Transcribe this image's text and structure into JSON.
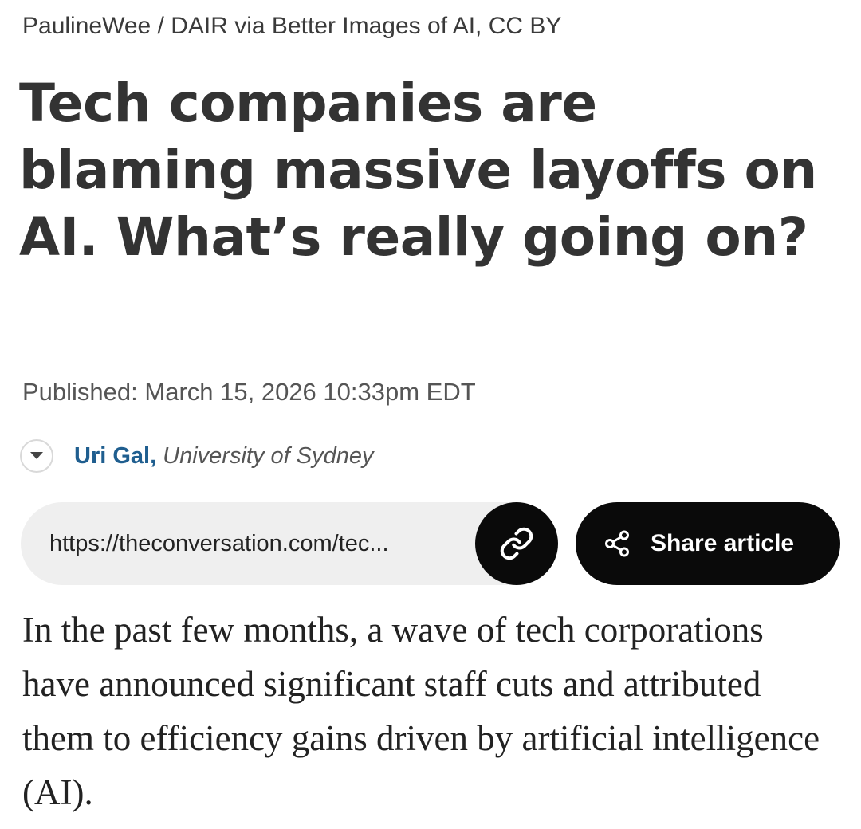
{
  "image_credit": "PaulineWee / DAIR via Better Images of AI, CC BY",
  "article": {
    "title": "Tech companies are blaming massive layoffs on AI. What’s really going on?",
    "published": "Published: March 15, 2026 10:33pm EDT",
    "author": {
      "name": "Uri Gal,",
      "affiliation": "University of Sydney"
    },
    "body_first_paragraph": "In the past few months, a wave of tech corporations have announced significant staff cuts and attributed them to efficiency gains driven by artificial intelligence (AI)."
  },
  "share": {
    "url": "https://theconversation.com/tec...",
    "share_label": "Share article"
  },
  "icons": {
    "author_toggle": "chevron-down-icon",
    "copy_link": "link-icon",
    "share": "share-icon"
  },
  "colors": {
    "author_link": "#1f5e8f",
    "button_bg": "#0a0a0a",
    "url_box_bg": "#efefef"
  }
}
